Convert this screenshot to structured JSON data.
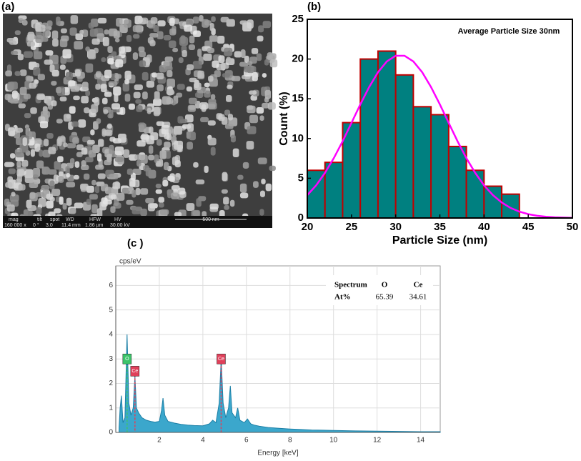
{
  "sem_image": {
    "label": "(a)",
    "info_headers": [
      "mag",
      "tilt",
      "spot",
      "WD",
      "HFW",
      "HV"
    ],
    "info_values": [
      "160 000 x",
      "0 °",
      "3.0",
      "11.4 mm",
      "1.86 µm",
      "30.00 kV"
    ],
    "scale_bar": "500 nm"
  },
  "chart_data": [
    {
      "type": "histogram",
      "title": "(b)",
      "annotation": "Average Particle Size 30nm",
      "x_label": "Particle Size (nm)",
      "y_label": "Count (%)",
      "bins": [
        20,
        22,
        24,
        26,
        28,
        30,
        32,
        34,
        36,
        38,
        40,
        42,
        44
      ],
      "values": [
        6,
        7,
        12,
        20,
        21,
        18,
        14,
        13,
        9,
        6,
        4,
        3
      ],
      "color": "#008080",
      "edge_color": "#c00000",
      "fit": {
        "color": "#ff00ff",
        "x": [
          20,
          21,
          22,
          23,
          24,
          25,
          26,
          27,
          28,
          29,
          30,
          31,
          32,
          33,
          34,
          35,
          36,
          37,
          38,
          39,
          40,
          41,
          42,
          43,
          44,
          45,
          46,
          47,
          48,
          49,
          50
        ],
        "values": [
          2.88,
          4.11,
          5.67,
          7.53,
          9.66,
          11.96,
          14.29,
          16.48,
          18.34,
          19.7,
          20.41,
          20.41,
          19.7,
          18.34,
          16.48,
          14.29,
          11.96,
          9.66,
          7.53,
          5.67,
          4.11,
          2.88,
          1.95,
          1.27,
          0.8,
          0.49,
          0.28,
          0.16,
          0.09,
          0.05,
          0.02
        ]
      },
      "xlim": [
        20,
        50
      ],
      "xticks": [
        20,
        25,
        30,
        35,
        40,
        45,
        50
      ],
      "ylim": [
        0,
        25
      ],
      "yticks": [
        0,
        5,
        10,
        15,
        20,
        25
      ]
    },
    {
      "type": "area",
      "title": "(c )",
      "x_label": "Energy [keV]",
      "y_label": "cps/eV",
      "color": "#3ba7cc",
      "x": [
        0.15,
        0.2,
        0.26,
        0.33,
        0.42,
        0.52,
        0.6,
        0.7,
        0.8,
        0.88,
        0.95,
        1.05,
        1.2,
        1.4,
        1.6,
        1.8,
        2.0,
        2.1,
        2.17,
        2.25,
        2.4,
        2.7,
        3.0,
        3.3,
        3.6,
        4.0,
        4.3,
        4.45,
        4.6,
        4.75,
        4.84,
        4.93,
        5.05,
        5.18,
        5.26,
        5.34,
        5.5,
        5.6,
        5.7,
        5.9,
        6.05,
        6.2,
        6.35,
        6.6,
        7.0,
        7.5,
        8.0,
        8.5,
        9.0,
        9.5,
        10.0,
        11.0,
        12.0,
        13.0,
        14.0,
        14.9
      ],
      "values": [
        0.2,
        1.0,
        1.5,
        0.4,
        0.6,
        4.0,
        1.2,
        0.7,
        1.0,
        2.3,
        1.0,
        0.8,
        0.6,
        0.5,
        0.45,
        0.42,
        0.45,
        0.9,
        1.4,
        0.7,
        0.45,
        0.38,
        0.33,
        0.3,
        0.28,
        0.27,
        0.35,
        0.5,
        0.4,
        1.2,
        3.0,
        1.2,
        0.6,
        1.0,
        1.9,
        0.8,
        0.6,
        1.0,
        0.5,
        0.4,
        0.55,
        0.35,
        0.3,
        0.25,
        0.2,
        0.17,
        0.14,
        0.12,
        0.1,
        0.09,
        0.08,
        0.06,
        0.05,
        0.04,
        0.03,
        0.03
      ],
      "markers": [
        {
          "label": "O",
          "x": 0.52,
          "y": 3,
          "color": "#3cc46a"
        },
        {
          "label": "Ce",
          "x": 0.88,
          "y": 2.5,
          "color": "#e0405a"
        },
        {
          "label": "Ce",
          "x": 4.84,
          "y": 3,
          "color": "#e0405a"
        }
      ],
      "table": {
        "header": [
          "Spectrum",
          "O",
          "Ce"
        ],
        "rows": [
          [
            "At%",
            65.39,
            34.61
          ]
        ]
      },
      "xlim": [
        0,
        14.9
      ],
      "xticks": [
        2,
        4,
        6,
        8,
        10,
        12,
        14
      ],
      "ylim": [
        0,
        6.8
      ],
      "yticks": [
        0,
        1,
        2,
        3,
        4,
        5,
        6
      ],
      "grid": true
    }
  ]
}
